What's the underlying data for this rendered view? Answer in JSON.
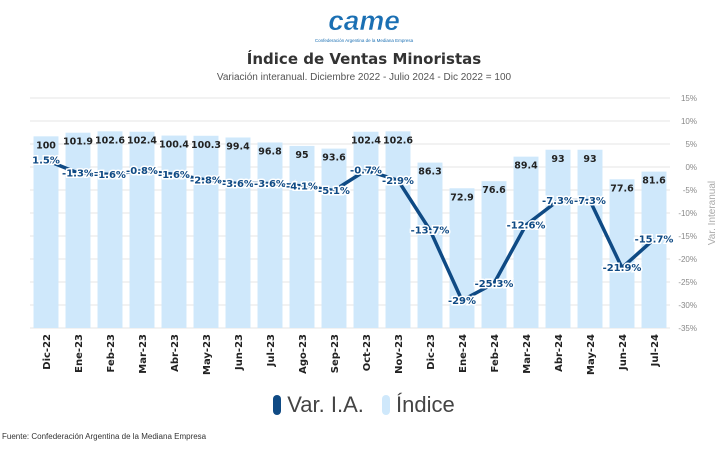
{
  "logo": {
    "text": "came",
    "tagline": "Confederación Argentina de la Mediana Empresa",
    "color": "#1a6fb3"
  },
  "chart_data": {
    "type": "bar",
    "title": "Índice de Ventas Minoristas",
    "subtitle": "Variación interanual. Diciembre 2022 - Julio 2024 - Dic 2022 = 100",
    "categories": [
      "Dic-22",
      "Ene-23",
      "Feb-23",
      "Mar-23",
      "Abr-23",
      "May-23",
      "Jun-23",
      "Jul-23",
      "Ago-23",
      "Sep-23",
      "Oct-23",
      "Nov-23",
      "Dic-23",
      "Ene-24",
      "Feb-24",
      "Mar-24",
      "Abr-24",
      "May-24",
      "Jun-24",
      "Jul-24"
    ],
    "series": [
      {
        "name": "Índice",
        "type": "bar",
        "axis": "left",
        "color": "#cfe8fb",
        "values": [
          100,
          101.9,
          102.6,
          102.4,
          100.4,
          100.3,
          99.4,
          96.8,
          95,
          93.6,
          102.4,
          102.6,
          86.3,
          72.9,
          76.6,
          89.4,
          93,
          93,
          77.6,
          81.6
        ],
        "labels": [
          "100",
          "101.9",
          "102.6",
          "102.4",
          "100.4",
          "100.3",
          "99.4",
          "96.8",
          "95",
          "93.6",
          "102.4",
          "102.6",
          "86.3",
          "72.9",
          "76.6",
          "89.4",
          "93",
          "93",
          "77.6",
          "81.6"
        ]
      },
      {
        "name": "Var. I.A.",
        "type": "line",
        "axis": "right",
        "color": "#0f4a84",
        "values": [
          1.5,
          -1.3,
          -1.6,
          -0.8,
          -1.6,
          -2.8,
          -3.6,
          -3.6,
          -4.1,
          -5.1,
          -0.7,
          -2.9,
          -13.7,
          -29,
          -25.3,
          -12.6,
          -7.3,
          -7.3,
          -21.9,
          -15.7
        ],
        "labels": [
          "1.5%",
          "-1.3%",
          "-1.6%",
          "-0.8%",
          "-1.6%",
          "-2.8%",
          "-3.6%",
          "-3.6%",
          "-4.1%",
          "-5.1%",
          "-0.7%",
          "-2.9%",
          "-13.7%",
          "-29%",
          "-25.3%",
          "-12.6%",
          "-7.3%",
          "-7.3%",
          "-21.9%",
          "-15.7%"
        ]
      }
    ],
    "y_left_range": [
      0,
      120
    ],
    "y_right": {
      "label": "Var. Interanual",
      "range": [
        -35,
        15
      ],
      "ticks": [
        "15%",
        "10%",
        "5%",
        "0%",
        "-5%",
        "-10%",
        "-15%",
        "-20%",
        "-25%",
        "-30%",
        "-35%"
      ]
    },
    "grid": true,
    "legend_position": "bottom"
  },
  "source": "Fuente: Confederación Argentina de la Mediana Empresa"
}
